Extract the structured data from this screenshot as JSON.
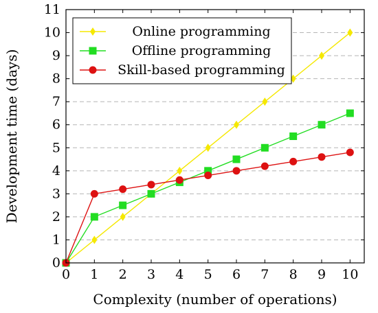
{
  "chart_data": {
    "type": "line",
    "xlabel": "Complexity (number of operations)",
    "ylabel": "Development time (days)",
    "xlim": [
      0,
      10.5
    ],
    "ylim": [
      0,
      11
    ],
    "xticks": [
      0,
      1,
      2,
      3,
      4,
      5,
      6,
      7,
      8,
      9,
      10
    ],
    "yticks": [
      0,
      1,
      2,
      3,
      4,
      5,
      6,
      7,
      8,
      9,
      10,
      11
    ],
    "grid": "horizontal dashed",
    "legend_position": "top-left",
    "x": [
      0,
      1,
      2,
      3,
      4,
      5,
      6,
      7,
      8,
      9,
      10
    ],
    "series": [
      {
        "name": "Online programming",
        "color": "#f5e800",
        "marker": "diamond",
        "values": [
          0,
          1,
          2,
          3,
          4,
          5,
          6,
          7,
          8,
          9,
          10
        ]
      },
      {
        "name": "Offline programming",
        "color": "#22dd22",
        "marker": "square",
        "values": [
          0,
          2,
          2.5,
          3,
          3.5,
          4,
          4.5,
          5,
          5.5,
          6,
          6.5
        ]
      },
      {
        "name": "Skill-based programming",
        "color": "#dd1111",
        "marker": "circle",
        "values": [
          0,
          3,
          3.2,
          3.4,
          3.6,
          3.8,
          4,
          4.2,
          4.4,
          4.6,
          4.8
        ]
      }
    ]
  }
}
